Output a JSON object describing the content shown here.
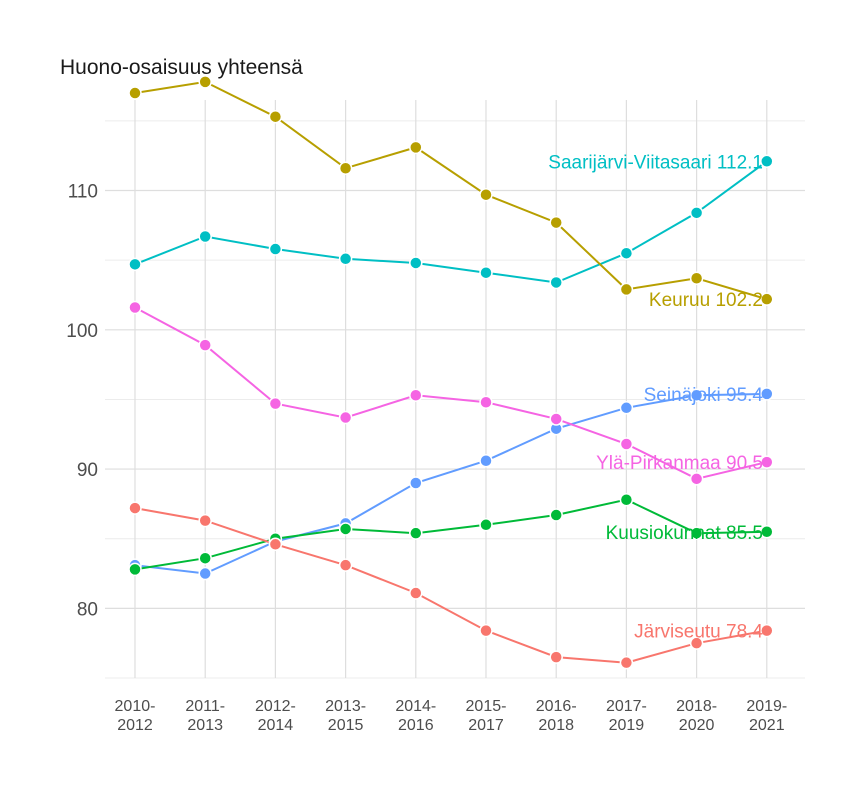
{
  "chart_data": {
    "type": "line",
    "title": "Huono-osaisuus yhteensä",
    "xlabel": "",
    "ylabel": "",
    "categories": [
      "2010-\n2012",
      "2011-\n2013",
      "2012-\n2014",
      "2013-\n2015",
      "2014-\n2016",
      "2015-\n2017",
      "2016-\n2018",
      "2017-\n2019",
      "2018-\n2020",
      "2019-\n2021"
    ],
    "ylim": [
      75,
      116.5
    ],
    "yticks": [
      80,
      90,
      100,
      110
    ],
    "grid": true,
    "series": [
      {
        "name": "Saarijärvi-Viitasaari",
        "color": "#00BFC4",
        "values": [
          104.7,
          106.7,
          105.8,
          105.1,
          104.8,
          104.1,
          103.4,
          105.5,
          108.4,
          112.1
        ],
        "end_label": "Saarijärvi-Viitasaari 112.1"
      },
      {
        "name": "Keuruu",
        "color": "#B79F00",
        "values": [
          117.0,
          117.8,
          115.3,
          111.6,
          113.1,
          109.7,
          107.7,
          102.9,
          103.7,
          102.2
        ],
        "end_label": "Keuruu 102.2"
      },
      {
        "name": "Seinäjoki",
        "color": "#619CFF",
        "values": [
          83.1,
          82.5,
          84.8,
          86.1,
          89.0,
          90.6,
          92.9,
          94.4,
          95.3,
          95.4
        ],
        "end_label": "Seinäjoki 95.4"
      },
      {
        "name": "Ylä-Pirkanmaa",
        "color": "#F564E3",
        "values": [
          101.6,
          98.9,
          94.7,
          93.7,
          95.3,
          94.8,
          93.6,
          91.8,
          89.3,
          90.5
        ],
        "end_label": "Ylä-Pirkanmaa 90.5"
      },
      {
        "name": "Kuusiokunnat",
        "color": "#00BA38",
        "values": [
          82.8,
          83.6,
          85.0,
          85.7,
          85.4,
          86.0,
          86.7,
          87.8,
          85.4,
          85.5
        ],
        "end_label": "Kuusiokunnat 85.5"
      },
      {
        "name": "Järviseutu",
        "color": "#F8766D",
        "values": [
          87.2,
          86.3,
          84.6,
          83.1,
          81.1,
          78.4,
          76.5,
          76.1,
          77.5,
          78.4
        ],
        "end_label": "Järviseutu 78.4"
      }
    ]
  }
}
